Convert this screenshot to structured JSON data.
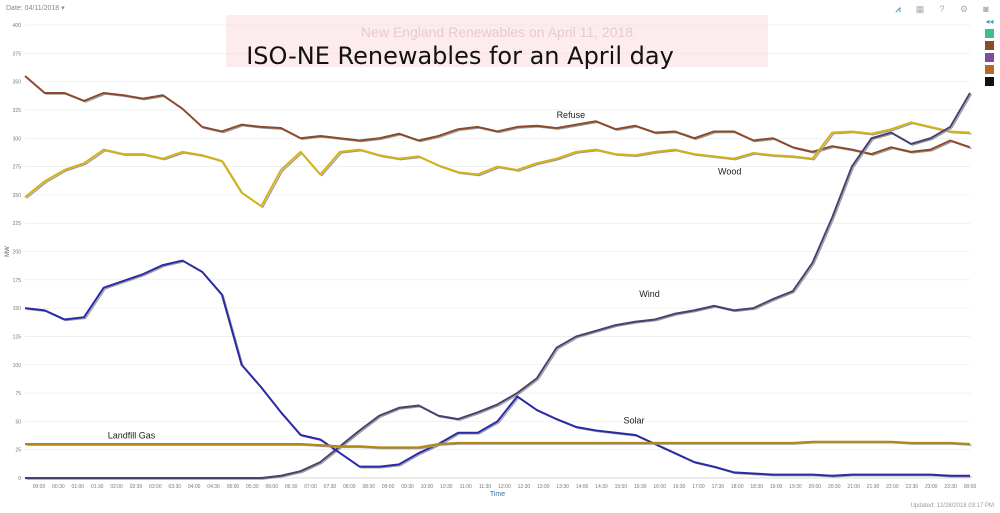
{
  "header": {
    "date_label": "Date: 04/11/2018 ▾",
    "tools": [
      {
        "name": "chart-type-icon",
        "glyph": "⩘"
      },
      {
        "name": "grid-icon",
        "glyph": "▦"
      },
      {
        "name": "help-icon",
        "glyph": "?"
      },
      {
        "name": "settings-icon",
        "glyph": "⚙"
      },
      {
        "name": "camera-icon",
        "glyph": "◙"
      }
    ]
  },
  "legend": {
    "collapse": "◂◂",
    "swatch_colors": [
      "#3cbf8a",
      "#8b4a2b",
      "#7a4fa0",
      "#b56a2a",
      "#111111"
    ]
  },
  "banner_text": "New England Renewables on April 11, 2018",
  "footer": "Updated: 12/28/2018 03:17 PM",
  "chart_data": {
    "type": "line",
    "title": "ISO-NE Renewables for an April day",
    "xlabel": "Time",
    "ylabel": "MW",
    "ylim": [
      0,
      400
    ],
    "yticks": [
      0,
      25,
      50,
      75,
      100,
      125,
      150,
      175,
      200,
      225,
      250,
      275,
      300,
      325,
      350,
      375,
      400
    ],
    "xticks": [
      "00:00",
      "00:30",
      "01:00",
      "01:30",
      "02:00",
      "02:30",
      "03:00",
      "03:30",
      "04:00",
      "04:30",
      "05:00",
      "05:30",
      "06:00",
      "06:30",
      "07:00",
      "07:30",
      "08:00",
      "08:30",
      "09:00",
      "09:30",
      "10:00",
      "10:30",
      "11:00",
      "11:30",
      "12:00",
      "12:30",
      "13:00",
      "13:30",
      "14:00",
      "14:30",
      "15:00",
      "15:30",
      "16:00",
      "16:30",
      "17:00",
      "17:30",
      "18:00",
      "18:30",
      "19:00",
      "19:30",
      "20:00",
      "20:30",
      "21:00",
      "21:30",
      "22:00",
      "22:30",
      "23:00",
      "23:30",
      "00:00"
    ],
    "x_unit": "hours",
    "series": [
      {
        "name": "Refuse",
        "color": "#8b4a2b",
        "x": [
          0,
          0.5,
          1,
          1.5,
          2,
          2.5,
          3,
          3.5,
          4,
          4.5,
          5,
          5.5,
          6,
          6.5,
          7,
          7.5,
          8,
          8.5,
          9,
          9.5,
          10,
          10.5,
          11,
          11.5,
          12,
          12.5,
          13,
          13.5,
          14,
          14.5,
          15,
          15.5,
          16,
          16.5,
          17,
          17.5,
          18,
          18.5,
          19,
          19.5,
          20,
          20.5,
          21,
          21.5,
          22,
          22.5,
          23,
          23.5,
          24
        ],
        "values": [
          355,
          340,
          340,
          333,
          340,
          338,
          335,
          338,
          326,
          310,
          306,
          312,
          310,
          309,
          300,
          302,
          300,
          298,
          300,
          304,
          298,
          302,
          308,
          310,
          306,
          310,
          311,
          309,
          312,
          315,
          308,
          311,
          305,
          306,
          300,
          306,
          306,
          298,
          300,
          292,
          288,
          293,
          290,
          286,
          292,
          288,
          290,
          298,
          292
        ]
      },
      {
        "name": "Wood",
        "color": "#d4b216",
        "x": [
          0,
          0.5,
          1,
          1.5,
          2,
          2.5,
          3,
          3.5,
          4,
          4.5,
          5,
          5.5,
          6,
          6.5,
          7,
          7.5,
          8,
          8.5,
          9,
          9.5,
          10,
          10.5,
          11,
          11.5,
          12,
          12.5,
          13,
          13.5,
          14,
          14.5,
          15,
          15.5,
          16,
          16.5,
          17,
          17.5,
          18,
          18.5,
          19,
          19.5,
          20,
          20.5,
          21,
          21.5,
          22,
          22.5,
          23,
          23.5,
          24
        ],
        "values": [
          248,
          262,
          272,
          278,
          290,
          286,
          286,
          282,
          288,
          285,
          280,
          252,
          240,
          272,
          288,
          268,
          288,
          290,
          285,
          282,
          284,
          276,
          270,
          268,
          275,
          272,
          278,
          282,
          288,
          290,
          286,
          285,
          288,
          290,
          286,
          284,
          282,
          287,
          285,
          284,
          282,
          305,
          306,
          304,
          308,
          314,
          310,
          306,
          305
        ]
      },
      {
        "name": "Wind",
        "color": "#4a4070",
        "x": [
          0,
          0.5,
          1,
          1.5,
          2,
          2.5,
          3,
          3.5,
          4,
          4.5,
          5,
          5.5,
          6,
          6.5,
          7,
          7.5,
          8,
          8.5,
          9,
          9.5,
          10,
          10.5,
          11,
          11.5,
          12,
          12.5,
          13,
          13.5,
          14,
          14.5,
          15,
          15.5,
          16,
          16.5,
          17,
          17.5,
          18,
          18.5,
          19,
          19.5,
          20,
          20.5,
          21,
          21.5,
          22,
          22.5,
          23,
          23.5,
          24
        ],
        "values": [
          0,
          0,
          0,
          0,
          0,
          0,
          0,
          0,
          0,
          0,
          0,
          0,
          0,
          2,
          6,
          14,
          28,
          42,
          55,
          62,
          64,
          55,
          52,
          58,
          65,
          75,
          88,
          115,
          125,
          130,
          135,
          138,
          140,
          145,
          148,
          152,
          148,
          150,
          158,
          165,
          190,
          230,
          275,
          300,
          305,
          295,
          300,
          310,
          340
        ]
      },
      {
        "name": "Solar",
        "color": "#2a2aa8",
        "x": [
          0,
          0.5,
          1,
          1.5,
          2,
          2.5,
          3,
          3.5,
          4,
          4.5,
          5,
          5.5,
          6,
          6.5,
          7,
          7.5,
          8,
          8.5,
          9,
          9.5,
          10,
          10.5,
          11,
          11.5,
          12,
          12.5,
          13,
          13.5,
          14,
          14.5,
          15,
          15.5,
          16,
          16.5,
          17,
          17.5,
          18,
          18.5,
          19,
          19.5,
          20,
          20.5,
          21,
          21.5,
          22,
          22.5,
          23,
          23.5,
          24
        ],
        "values": [
          150,
          148,
          140,
          142,
          168,
          174,
          180,
          188,
          192,
          182,
          162,
          100,
          80,
          58,
          38,
          34,
          22,
          10,
          10,
          12,
          22,
          30,
          40,
          40,
          50,
          72,
          60,
          52,
          45,
          42,
          40,
          38,
          30,
          22,
          14,
          10,
          5,
          4,
          3,
          3,
          3,
          2,
          3,
          3,
          3,
          3,
          3,
          2,
          2
        ]
      },
      {
        "name": "Landfill Gas",
        "color": "#b5860c",
        "x": [
          0,
          0.5,
          1,
          1.5,
          2,
          2.5,
          3,
          3.5,
          4,
          4.5,
          5,
          5.5,
          6,
          6.5,
          7,
          7.5,
          8,
          8.5,
          9,
          9.5,
          10,
          10.5,
          11,
          11.5,
          12,
          12.5,
          13,
          13.5,
          14,
          14.5,
          15,
          15.5,
          16,
          16.5,
          17,
          17.5,
          18,
          18.5,
          19,
          19.5,
          20,
          20.5,
          21,
          21.5,
          22,
          22.5,
          23,
          23.5,
          24
        ],
        "values": [
          30,
          30,
          30,
          30,
          30,
          30,
          30,
          30,
          30,
          30,
          30,
          30,
          30,
          30,
          30,
          29,
          28,
          28,
          27,
          27,
          27,
          30,
          31,
          31,
          31,
          31,
          31,
          31,
          31,
          31,
          31,
          31,
          31,
          31,
          31,
          31,
          31,
          31,
          31,
          31,
          32,
          32,
          32,
          32,
          32,
          31,
          31,
          31,
          30
        ]
      }
    ],
    "annotations": [
      {
        "text": "Refuse",
        "x": 13.5,
        "y": 318
      },
      {
        "text": "Wood",
        "x": 17.6,
        "y": 268
      },
      {
        "text": "Wind",
        "x": 15.6,
        "y": 160
      },
      {
        "text": "Solar",
        "x": 15.2,
        "y": 48
      },
      {
        "text": "Landfill Gas",
        "x": 2.1,
        "y": 35
      }
    ]
  }
}
